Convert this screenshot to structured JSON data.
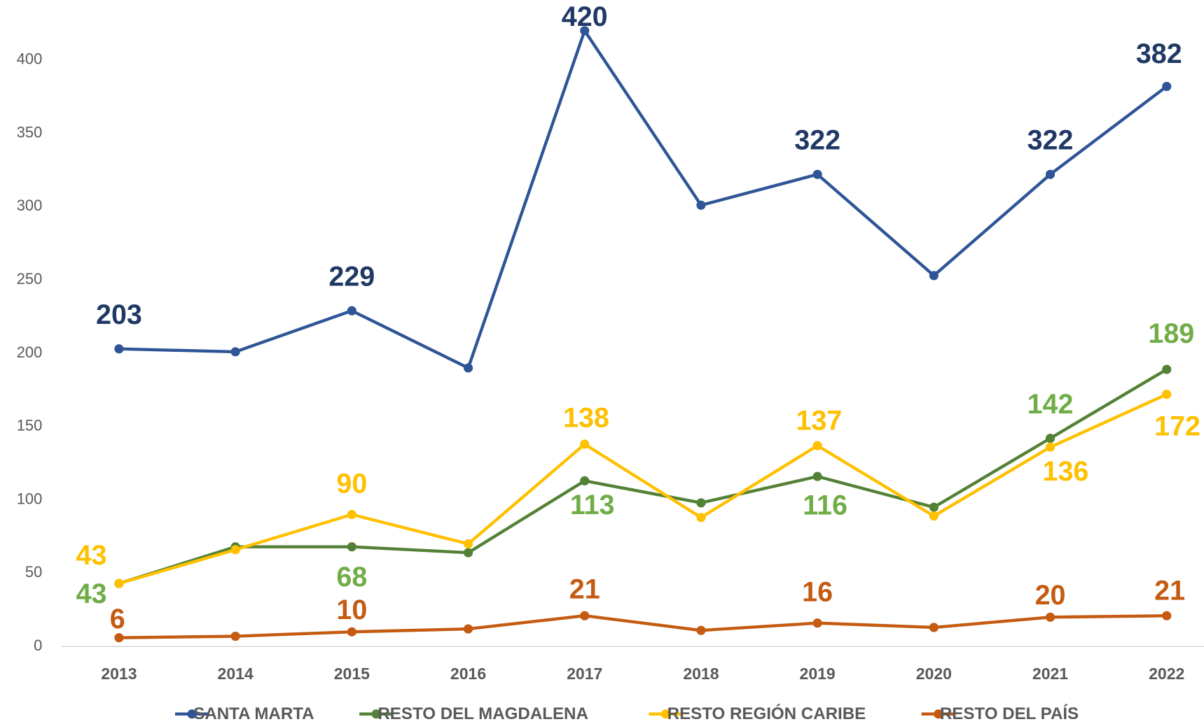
{
  "chart_data": {
    "type": "line",
    "categories": [
      "2013",
      "2014",
      "2015",
      "2016",
      "2017",
      "2018",
      "2019",
      "2020",
      "2021",
      "2022"
    ],
    "ylim": [
      0,
      420
    ],
    "yticks": [
      0,
      50,
      100,
      150,
      200,
      250,
      300,
      350,
      400
    ],
    "legend": "bottom",
    "series": [
      {
        "name": "SANTA MARTA",
        "color": "#2f5597",
        "label_color": "#1f3864",
        "values": [
          203,
          201,
          229,
          190,
          420,
          301,
          322,
          253,
          322,
          382
        ],
        "value_labels": [
          "203",
          null,
          "229",
          null,
          "420",
          null,
          "322",
          null,
          "322",
          "382"
        ]
      },
      {
        "name": "RESTO DEL MAGDALENA",
        "color": "#538135",
        "label_color": "#70ad47",
        "values": [
          43,
          68,
          68,
          64,
          113,
          98,
          116,
          95,
          142,
          189
        ],
        "value_labels": [
          "43",
          null,
          "68",
          null,
          "113",
          null,
          "116",
          null,
          "142",
          "189"
        ]
      },
      {
        "name": "RESTO REGIÓN CARIBE",
        "color": "#ffc000",
        "label_color": "#ffc000",
        "values": [
          43,
          66,
          90,
          70,
          138,
          88,
          137,
          89,
          136,
          172
        ],
        "value_labels": [
          "43",
          null,
          "90",
          null,
          "138",
          null,
          "137",
          null,
          "136",
          "172"
        ]
      },
      {
        "name": "RESTO DEL PAÍS",
        "color": "#c55a11",
        "label_color": "#c55a11",
        "values": [
          6,
          7,
          10,
          12,
          21,
          11,
          16,
          13,
          20,
          21
        ],
        "value_labels": [
          "6",
          null,
          "10",
          null,
          "21",
          null,
          "16",
          null,
          "20",
          "21"
        ]
      }
    ]
  }
}
